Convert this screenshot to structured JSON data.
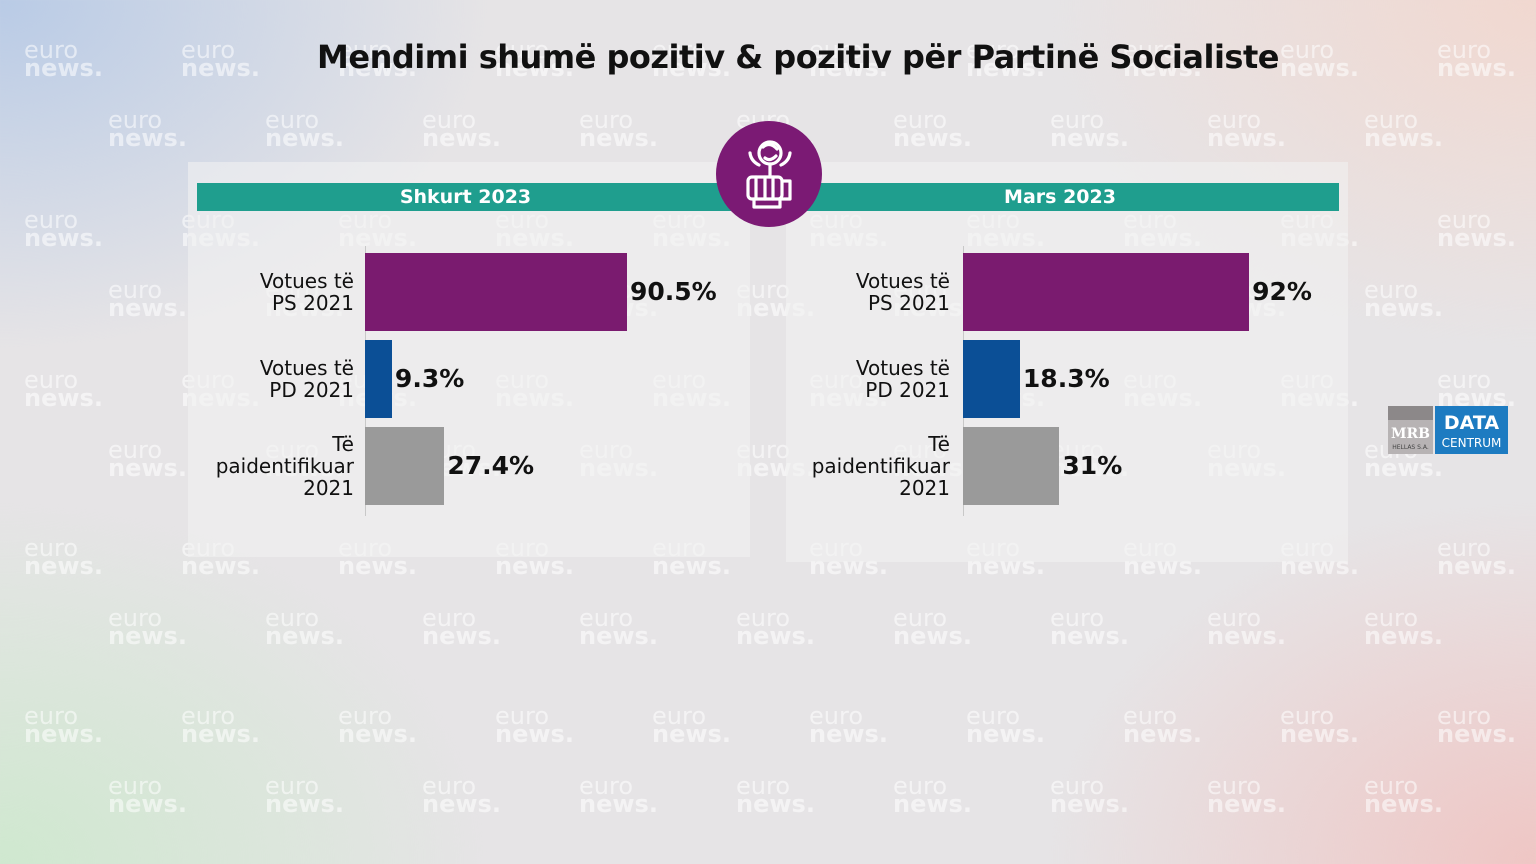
{
  "title": "Mendimi shumë pozitiv & pozitiv për Partinë Socialiste",
  "watermark": {
    "line1": "euro",
    "line2": "news."
  },
  "logo": {
    "icon": "rose-fist-icon",
    "color": "#7b1a74"
  },
  "source_logo": {
    "left": "MRB",
    "left_sub": "HELLAS S.A.",
    "right_1": "DATA",
    "right_2": "CENTRUM"
  },
  "colors": {
    "ps": "#7a1b6f",
    "pd": "#0b4f96",
    "unidentified": "#9a9a9a",
    "band": "#1f9e8e"
  },
  "chart_data": [
    {
      "type": "bar",
      "orientation": "horizontal",
      "title": "Shkurt 2023",
      "categories": [
        "Votues të PS 2021",
        "Votues të PD 2021",
        "Të paidentifikuar 2021"
      ],
      "category_lines": [
        [
          "Votues të",
          "PS 2021"
        ],
        [
          "Votues të",
          "PD 2021"
        ],
        [
          "Të",
          "paidentifikuar",
          "2021"
        ]
      ],
      "values": [
        90.5,
        9.3,
        27.4
      ],
      "value_labels": [
        "90.5%",
        "9.3%",
        "27.4%"
      ],
      "unit": "%",
      "xlim": [
        0,
        100
      ]
    },
    {
      "type": "bar",
      "orientation": "horizontal",
      "title": "Mars 2023",
      "categories": [
        "Votues të PS 2021",
        "Votues të PD 2021",
        "Të paidentifikuar 2021"
      ],
      "category_lines": [
        [
          "Votues të",
          "PS 2021"
        ],
        [
          "Votues të",
          "PD 2021"
        ],
        [
          "Të",
          "paidentifikuar",
          "2021"
        ]
      ],
      "values": [
        92,
        18.3,
        31
      ],
      "value_labels": [
        "92%",
        "18.3%",
        "31%"
      ],
      "unit": "%",
      "xlim": [
        0,
        100
      ]
    }
  ]
}
